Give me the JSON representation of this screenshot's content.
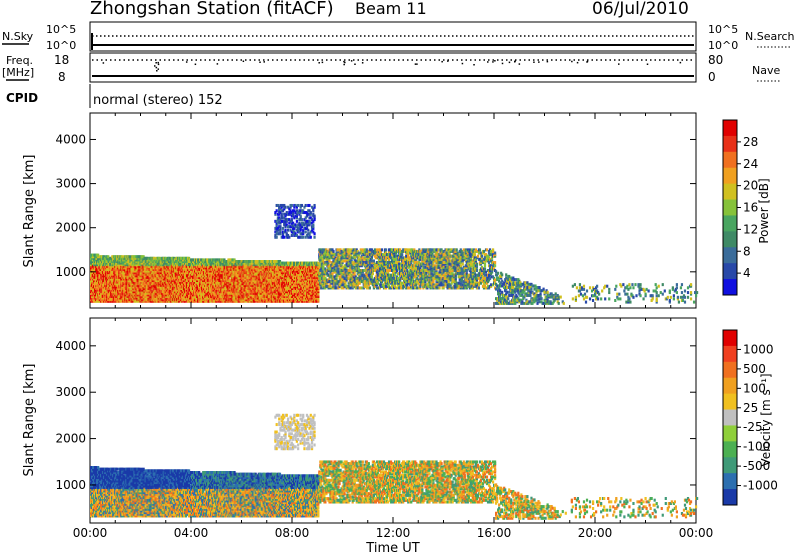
{
  "header": {
    "station": "Zhongshan Station (fitACF)",
    "beam": "Beam 11",
    "date": "06/Jul/2010"
  },
  "status_panels": {
    "nsky_label": "N.Sky",
    "nsky_ticks": [
      "10^5",
      "10^0"
    ],
    "nsearch_label": "N.Search",
    "nsearch_ticks": [
      "10^5",
      "10^0"
    ],
    "freq_label": "Freq.",
    "freq_unit": "[MHz]",
    "freq_ticks": [
      "18",
      "8"
    ],
    "nave_label": "Nave",
    "nave_ticks": [
      "80",
      "0"
    ],
    "cpid_label": "CPID",
    "cpid_value": "normal (stereo) 152"
  },
  "chart_data": [
    {
      "type": "heatmap",
      "name": "power-panel",
      "title": "",
      "xlabel": "Time UT",
      "ylabel": "Slant Range [km]",
      "x_ticks": [
        "00:00",
        "04:00",
        "08:00",
        "12:00",
        "16:00",
        "20:00",
        "00:00"
      ],
      "x_range_hours": [
        0,
        24
      ],
      "y_ticks": [
        1000,
        2000,
        3000,
        4000
      ],
      "ylim": [
        180,
        4600
      ],
      "colorbar": {
        "label": "Power [dB]",
        "ticks": [
          "4",
          "8",
          "12",
          "16",
          "20",
          "24",
          "28"
        ],
        "colors": [
          "#1010e0",
          "#2848a8",
          "#3a6c9a",
          "#3f8a66",
          "#49a560",
          "#86c23a",
          "#d0c020",
          "#f0a020",
          "#f07020",
          "#e83018",
          "#e00000"
        ]
      }
    },
    {
      "type": "heatmap",
      "name": "velocity-panel",
      "title": "",
      "xlabel": "Time UT",
      "ylabel": "Slant Range [km]",
      "x_ticks": [
        "00:00",
        "04:00",
        "08:00",
        "12:00",
        "16:00",
        "20:00",
        "00:00"
      ],
      "x_range_hours": [
        0,
        24
      ],
      "y_ticks": [
        1000,
        2000,
        3000,
        4000
      ],
      "ylim": [
        180,
        4600
      ],
      "colorbar": {
        "label": "Velocity [m s⁻¹]",
        "ticks": [
          "1000",
          "500",
          "100",
          "25",
          "-25",
          "-100",
          "-500",
          "-1000"
        ],
        "colors": [
          "#1a3aa8",
          "#2c6fb0",
          "#3f9a78",
          "#4cb052",
          "#8fcf3a",
          "#c0c0c0",
          "#f0c020",
          "#f0a020",
          "#f07020",
          "#f04020",
          "#e00000"
        ]
      }
    }
  ]
}
